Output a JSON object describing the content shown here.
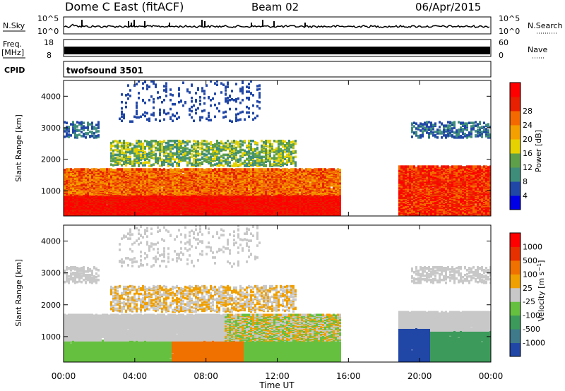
{
  "header": {
    "title": "Dome C East (fitACF)",
    "beam": "Beam 02",
    "date": "06/Apr/2015"
  },
  "strips": {
    "nsky_label": "N.Sky",
    "nsearch_label": "N.Search",
    "nsky_ticks": [
      "10^5",
      "10^0"
    ],
    "freq_label_1": "Freq.",
    "freq_label_2": "[MHz]",
    "freq_ticks": [
      "18",
      "8"
    ],
    "nave_label": "Nave",
    "nave_ticks": [
      "60",
      "0"
    ],
    "cpid_label": "CPID",
    "cpid_value": "twofsound 3501"
  },
  "colors": {
    "power_scale": [
      "#0000e6",
      "#2147a6",
      "#3e8d7a",
      "#5ea04a",
      "#e6d200",
      "#f4a000",
      "#f46a00",
      "#e62000",
      "#ff0000"
    ],
    "velocity_scale": [
      "#2147a6",
      "#3e7a8a",
      "#3c9a5a",
      "#66c040",
      "#c8c8c8",
      "#f0a000",
      "#f07000",
      "#e63000",
      "#ff0000"
    ]
  },
  "chart_data": [
    {
      "type": "heatmap",
      "panel": "power",
      "ylabel": "Slant Range [km]",
      "yticks": [
        "1000",
        "2000",
        "3000",
        "4000"
      ],
      "ylim": [
        200,
        4500
      ],
      "xlim": [
        "00:00",
        "00:00"
      ],
      "colorbar_label": "Power [dB]",
      "colorbar_ticks": [
        "4",
        "8",
        "12",
        "16",
        "20",
        "24",
        "28"
      ]
    },
    {
      "type": "heatmap",
      "panel": "velocity",
      "ylabel": "Slant Range [km]",
      "yticks": [
        "1000",
        "2000",
        "3000",
        "4000"
      ],
      "ylim": [
        200,
        4500
      ],
      "xlabel": "Time UT",
      "xticks": [
        "00:00",
        "04:00",
        "08:00",
        "12:00",
        "16:00",
        "20:00",
        "00:00"
      ],
      "colorbar_label": "Velocity [m s-1]",
      "colorbar_ticks": [
        "1000",
        "500",
        "100",
        "25",
        "-25",
        "-100",
        "-500",
        "-1000"
      ]
    }
  ]
}
